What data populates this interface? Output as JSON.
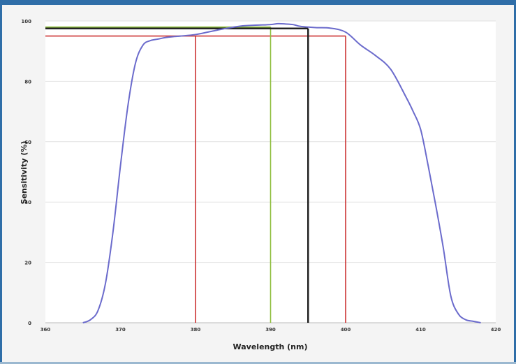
{
  "chart_data": {
    "type": "line",
    "title": "",
    "xlabel": "Wavelength (nm)",
    "ylabel": "Sensitivity (%)",
    "xlim": [
      360,
      420
    ],
    "ylim": [
      0,
      100
    ],
    "x_ticks": [
      360,
      370,
      380,
      390,
      400,
      410,
      420
    ],
    "y_ticks": [
      0,
      20,
      40,
      60,
      80,
      100
    ],
    "x_tick_labels": [
      "360",
      "370",
      "380",
      "390",
      "400",
      "410",
      "420"
    ],
    "y_tick_labels": [
      "0",
      "20",
      "40",
      "60",
      "80",
      "100"
    ],
    "grid": "horizontal",
    "legend": "none",
    "series": [
      {
        "color": "#6b6bcc",
        "x": [
          365,
          366,
          367,
          368,
          369,
          370,
          371,
          372,
          373,
          374,
          375,
          376,
          377,
          378,
          380,
          382,
          384,
          386,
          388,
          390,
          391,
          392,
          393,
          394,
          396,
          398,
          400,
          402,
          404,
          406,
          408,
          409,
          410,
          411,
          412,
          413,
          414,
          415,
          416,
          417,
          418
        ],
        "y": [
          0,
          1,
          4,
          13,
          30,
          52,
          72,
          86,
          92,
          93.5,
          94,
          94.5,
          94.8,
          95,
          95.5,
          96.5,
          97.5,
          98.3,
          98.6,
          98.8,
          99.1,
          99,
          98.8,
          98.2,
          97.8,
          97.6,
          96.3,
          92,
          88.5,
          84,
          75,
          70,
          64,
          52,
          39,
          25,
          9,
          3,
          1,
          0.5,
          0
        ]
      }
    ],
    "reference_lines": [
      {
        "color": "#cc3333",
        "kind": "horizontal",
        "y": 95,
        "x_from": 360,
        "x_to": 400
      },
      {
        "color": "#cc3333",
        "kind": "vertical",
        "x": 380,
        "y_from": 0,
        "y_to": 95
      },
      {
        "color": "#cc3333",
        "kind": "vertical",
        "x": 400,
        "y_from": 0,
        "y_to": 95
      },
      {
        "color": "#8fbf3f",
        "kind": "horizontal",
        "y": 98,
        "x_from": 360,
        "x_to": 390
      },
      {
        "color": "#8fbf3f",
        "kind": "vertical",
        "x": 390,
        "y_from": 0,
        "y_to": 98
      },
      {
        "color": "#222222",
        "kind": "horizontal",
        "y": 97.5,
        "x_from": 360,
        "x_to": 395
      },
      {
        "color": "#222222",
        "kind": "vertical",
        "x": 395,
        "y_from": 0,
        "y_to": 97.5
      }
    ]
  }
}
